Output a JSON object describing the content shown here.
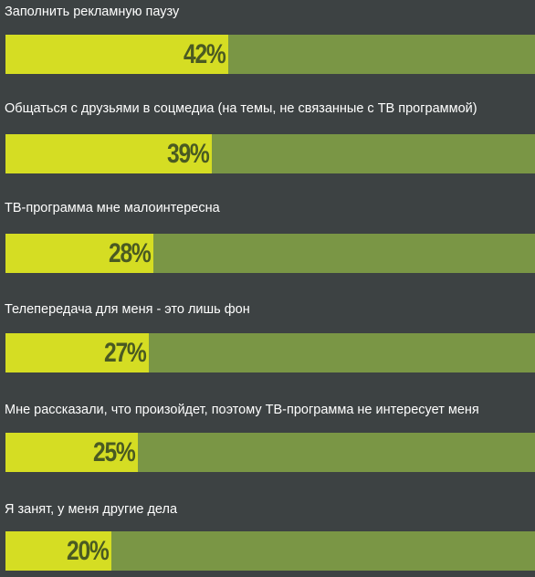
{
  "chart_data": {
    "type": "bar",
    "orientation": "horizontal",
    "title": "",
    "xlabel": "",
    "ylabel": "",
    "categories": [
      "Заполнить рекламную паузу",
      "Общаться с друзьями в соцмедиа (на темы, не связанные с ТВ программой)",
      "ТВ-программа мне малоинтересна",
      "Телепередача для меня - это лишь фон",
      "Мне рассказали, что произойдет, поэтому ТВ-программа не интересует меня",
      "Я занят, у меня другие дела"
    ],
    "values": [
      42,
      39,
      28,
      27,
      25,
      20
    ],
    "value_labels": [
      "42%",
      "39%",
      "28%",
      "27%",
      "25%",
      "20%"
    ],
    "unit": "%",
    "xlim": [
      0,
      100
    ],
    "grid": false,
    "legend": "none"
  },
  "colors": {
    "background": "#3d4243",
    "bar_fill": "#d5dd23",
    "bar_track": "#7a9645",
    "value_text": "#4a5a22",
    "label_text": "#ffffff"
  }
}
